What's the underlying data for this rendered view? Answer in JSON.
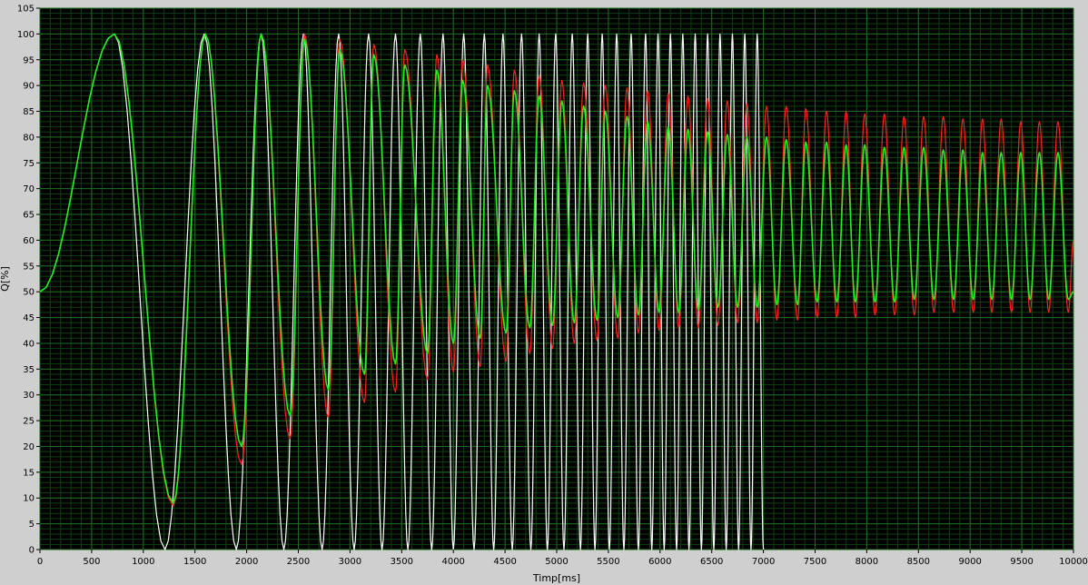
{
  "chart_data": {
    "type": "line",
    "title": "",
    "xlabel": "Timp[ms]",
    "ylabel": "Q[%]",
    "xlim": [
      0,
      10000
    ],
    "ylim": [
      0,
      105
    ],
    "x_ticks": [
      0,
      500,
      1000,
      1500,
      2000,
      2500,
      3000,
      3500,
      4000,
      4500,
      5000,
      5500,
      6000,
      6500,
      7000,
      7500,
      8000,
      8500,
      9000,
      9500,
      10000
    ],
    "x_tick_labels": [
      "0",
      "500",
      "1000",
      "1500",
      "2000",
      "2500",
      "3000",
      "3500",
      "4000",
      "4500",
      "5000",
      "5500",
      "6000",
      "6500",
      "7000",
      "7500",
      "8000",
      "8500",
      "9000",
      "9500",
      "10000"
    ],
    "y_ticks": [
      0,
      5,
      10,
      15,
      20,
      25,
      30,
      35,
      40,
      45,
      50,
      55,
      60,
      65,
      70,
      75,
      80,
      85,
      90,
      95,
      100,
      105
    ],
    "y_tick_labels": [
      "0",
      "5",
      "10",
      "15",
      "20",
      "25",
      "30",
      "35",
      "40",
      "45",
      "50",
      "55",
      "60",
      "65",
      "70",
      "75",
      "80",
      "85",
      "90",
      "95",
      "100",
      "105"
    ],
    "grid": true,
    "background_color": "#000000",
    "grid_color": "#1f6b1f",
    "frame_color": "#cfcfcf",
    "series": [
      {
        "color": "#ffffff",
        "description_of_shape": "chirp reference oscillating between 0 and 100 with increasing frequency",
        "x": [
          0,
          720,
          1210,
          1590,
          1900,
          2140,
          2360,
          2550,
          2730,
          2890,
          3040,
          3180,
          3310,
          3440,
          3560,
          3680,
          3790,
          3900,
          4000,
          4100,
          4200,
          4300,
          4390,
          4480,
          4570,
          4660,
          4750,
          4830,
          4910,
          4990,
          5070,
          5150,
          5230,
          5300,
          5370,
          5440,
          5510,
          5580,
          5650,
          5720,
          5790,
          5860,
          5920,
          5980,
          6040,
          6100,
          6160,
          6220,
          6280,
          6340,
          6400,
          6460,
          6520,
          6580,
          6640,
          6700,
          6760,
          6820,
          6880,
          6940,
          7000
        ],
        "y": [
          50,
          100,
          0,
          100,
          0,
          100,
          0,
          100,
          0,
          100,
          0,
          100,
          0,
          100,
          0,
          100,
          0,
          100,
          0,
          100,
          0,
          100,
          0,
          100,
          0,
          100,
          0,
          100,
          0,
          100,
          0,
          100,
          0,
          100,
          0,
          100,
          0,
          100,
          0,
          100,
          0,
          100,
          0,
          100,
          0,
          100,
          0,
          100,
          0,
          100,
          0,
          100,
          0,
          100,
          0,
          100,
          0,
          100,
          0,
          100,
          0
        ]
      },
      {
        "color": "#ff2020",
        "x": [
          0,
          720,
          1290,
          1600,
          1950,
          2140,
          2420,
          2560,
          2790,
          2900,
          3140,
          3230,
          3440,
          3530,
          3750,
          3840,
          4000,
          4090,
          4260,
          4330,
          4510,
          4590,
          4740,
          4830,
          4960,
          5050,
          5170,
          5260,
          5390,
          5470,
          5590,
          5680,
          5790,
          5880,
          5990,
          6080,
          6180,
          6270,
          6370,
          6460,
          6560,
          6650,
          6750,
          6840,
          6940,
          7030,
          7130,
          7220,
          7330,
          7410,
          7520,
          7610,
          7710,
          7800,
          7890,
          7980,
          8080,
          8170,
          8270,
          8360,
          8460,
          8550,
          8650,
          8740,
          8840,
          8930,
          9030,
          9120,
          9210,
          9300,
          9400,
          9490,
          9580,
          9670,
          9760,
          9850,
          9950,
          10000
        ],
        "y": [
          50,
          100,
          8.5,
          100,
          16.5,
          100,
          21.5,
          100,
          25.5,
          99,
          28.5,
          98,
          30.5,
          97,
          33,
          96,
          34.5,
          95,
          35.5,
          94,
          36.5,
          93,
          38,
          92,
          39,
          91,
          40,
          90.5,
          40.5,
          90,
          41,
          89.5,
          42,
          89,
          42.5,
          88.5,
          43,
          88,
          43,
          87.5,
          43.5,
          87,
          44,
          86.5,
          44,
          86,
          44.5,
          86,
          44.5,
          85.5,
          45,
          85,
          45,
          85,
          45,
          84.5,
          45.5,
          84.5,
          45.5,
          84,
          45.5,
          84,
          46,
          84,
          46,
          83.5,
          46,
          83.5,
          46,
          83.5,
          46,
          83,
          46,
          83,
          46,
          83,
          46,
          60
        ]
      },
      {
        "color": "#22ee22",
        "x": [
          0,
          720,
          1290,
          1600,
          1950,
          2140,
          2420,
          2560,
          2790,
          2900,
          3140,
          3230,
          3440,
          3530,
          3750,
          3840,
          4000,
          4090,
          4260,
          4330,
          4510,
          4590,
          4740,
          4830,
          4960,
          5050,
          5170,
          5260,
          5390,
          5470,
          5590,
          5680,
          5790,
          5880,
          5990,
          6080,
          6180,
          6270,
          6370,
          6460,
          6560,
          6650,
          6750,
          6840,
          6940,
          7030,
          7130,
          7220,
          7330,
          7410,
          7520,
          7610,
          7710,
          7800,
          7890,
          7980,
          8080,
          8170,
          8270,
          8360,
          8460,
          8550,
          8650,
          8740,
          8840,
          8930,
          9030,
          9120,
          9210,
          9300,
          9400,
          9490,
          9580,
          9670,
          9760,
          9850,
          9950,
          10000
        ],
        "y": [
          50,
          100,
          9,
          100,
          20,
          100,
          26,
          99,
          31,
          97,
          34,
          96,
          36,
          94,
          38,
          93,
          40,
          91,
          41,
          90,
          42,
          89,
          43,
          88,
          43.5,
          87,
          44,
          86,
          44.5,
          85,
          45,
          84,
          45.5,
          83,
          46,
          82,
          46,
          81.5,
          46.5,
          81,
          47,
          80.5,
          47,
          80,
          47,
          80,
          47.5,
          79.5,
          47.5,
          79,
          48,
          79,
          48,
          78.5,
          48,
          78.5,
          48,
          78,
          48,
          78,
          48.5,
          78,
          48.5,
          77.5,
          48.5,
          77.5,
          48.5,
          77,
          48.5,
          77,
          48.5,
          77,
          48.5,
          77,
          48.5,
          77,
          48.5,
          50
        ]
      }
    ]
  }
}
